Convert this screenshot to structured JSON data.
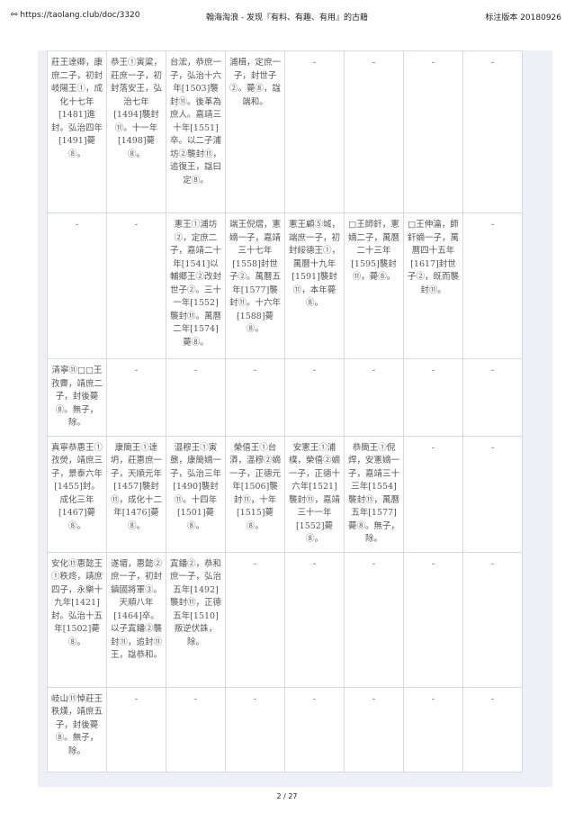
{
  "header": {
    "url_icon": "link-icon",
    "url": "https://taolang.club/doc/3320",
    "title": "翰海淘浪 - 发现『有料、有趣、有用』的古籍",
    "version": "标注版本 20180926"
  },
  "rows": [
    [
      "莊王達卿，康庶二子，初封岐陽王①，成化十七年[1481]進封。弘治四年[1491]薨⑧。",
      "恭王①寅粱，莊庶一子，初封落安王，弘治七年[1494]襲封⑪。十一年[1498]薨⑧。",
      "台浤，恭庶一子，弘治十六年[1503]襲封⑪。後革為庶人。嘉靖三十年[1551]卒。以二子浦坊②襲封⑪，追復王，諡曰定⑧。",
      "浦楫，定庶一子，封世子②。薨⑧，諡端和。",
      "-",
      "-",
      "-",
      "-"
    ],
    [
      "-",
      "-",
      "憲王①浦坊②，定庶二子，嘉靖二十年[1541]以輔鄉王②改封世子②。三十一年[1552]襲封⑪。萬曆二年[1574]薨⑧。",
      "端王倪熠，憲嫡一子，嘉靖三十七年[1558]封世子②。萬曆五年[1577]襲封⑪。十六年[1588]薨⑧。",
      "憲王顧⑤城，端庶一子，初封綏德王①，萬曆十九年[1591]襲封⑪，本年薨⑧。",
      "□王師釬，憲嫡二子，萬曆二十三年[1595]襲封⑪，薨⑧。",
      "□王伸瀹，師釬嫡一子，萬曆四十五年[1617]封世子②，既而襲封⑪。",
      "-"
    ],
    [
      "清寧⑪□□王孜霽，靖庶二子，封後薨⑧。無子，除。",
      "-",
      "-",
      "-",
      "-",
      "-",
      "-",
      "-"
    ],
    [
      "真寧恭惠王①孜熒，靖庶三子，景泰六年[1455]封。成化三年[1467]薨⑧。",
      "康簡王①達坍，莊惠庶一子，天順元年[1457]襲封⑪，成化十二年[1476]薨⑧。",
      "温穆王①寅鼐，康簡嫡一子，弘治三年[1490]襲封⑪。十四年[1501]薨⑧。",
      "榮僖王①台漭，溫穆②嫡一子，正德元年[1506]襲封⑪，十年[1515]薨⑧。",
      "安憲王①浦樸，榮僖②嫡一子，正德十六年[1521]襲封⑪，嘉靖三十一年[1552]薨⑧。",
      "恭簡王①倪焊，安憲嫡一子，嘉靖三十三年[1554]襲封⑪，萬曆五年[1577]薨⑧。無子，除。",
      "-",
      "-"
    ],
    [
      "安化⑪惠懿王①秩炵，靖庶四子，永樂十九年[1421]封。弘治十五年[1502]薨⑧。",
      "遂堳，惠懿②庶一子，初封鎮國將軍③。天順八年[1464]卒。以子寘鐇②襲封⑪，追封⑪王，諡恭和。",
      "寘鐇②，恭和庶一子，弘治五年[1492]襲封⑪，正德五年[1510]叛逆伏誅，除。",
      "-",
      "-",
      "-",
      "-",
      "-"
    ],
    [
      "岐山⑪悼莊王秩熯，靖庶五子，封後薨⑧。無子，除。",
      "-",
      "-",
      "-",
      "-",
      "-",
      "-",
      "-"
    ]
  ],
  "footer": {
    "page": "2 / 27"
  }
}
